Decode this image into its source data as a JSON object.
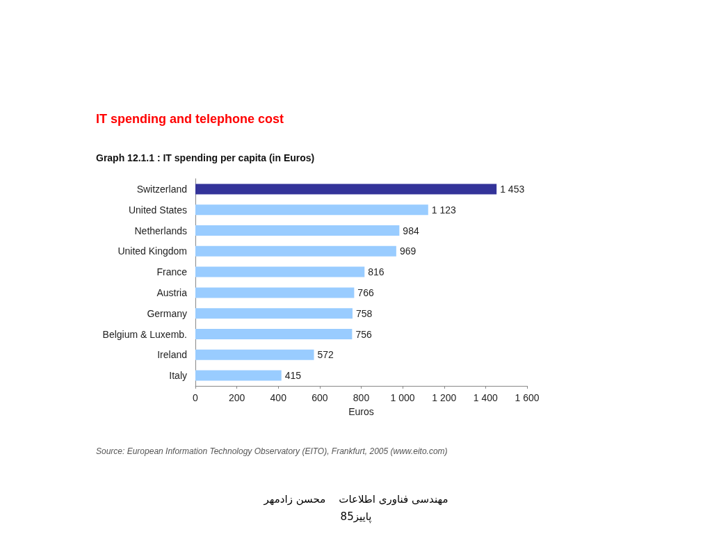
{
  "chart_data": {
    "type": "bar",
    "orientation": "horizontal",
    "title": "IT spending and telephone cost",
    "subtitle": "Graph 12.1.1 : IT spending per capita (in Euros)",
    "xlabel": "Euros",
    "categories": [
      "Switzerland",
      "United States",
      "Netherlands",
      "United Kingdom",
      "France",
      "Austria",
      "Germany",
      "Belgium & Luxemb.",
      "Ireland",
      "Italy"
    ],
    "values": [
      1453,
      1123,
      984,
      969,
      816,
      766,
      758,
      756,
      572,
      415
    ],
    "value_labels": [
      "1 453",
      "1 123",
      "984",
      "969",
      "816",
      "766",
      "758",
      "756",
      "572",
      "415"
    ],
    "colors": [
      "#333399",
      "#99ccff",
      "#99ccff",
      "#99ccff",
      "#99ccff",
      "#99ccff",
      "#99ccff",
      "#99ccff",
      "#99ccff",
      "#99ccff"
    ],
    "xlim": [
      0,
      1600
    ],
    "xticks": [
      0,
      200,
      400,
      600,
      800,
      {
        "value": 1000,
        "label": "1 000"
      },
      {
        "value": 1200,
        "label": "1 200"
      },
      {
        "value": 1400,
        "label": "1 400"
      },
      {
        "value": 1600,
        "label": "1 600"
      }
    ],
    "grid": false,
    "annotations": [
      "Source: European Information Technology Observatory (EITO), Frankfurt, 2005 (www.eito.com)",
      "مهندسی فناوری اطلاعات    محسن زادمهر",
      "پاییز85"
    ]
  }
}
